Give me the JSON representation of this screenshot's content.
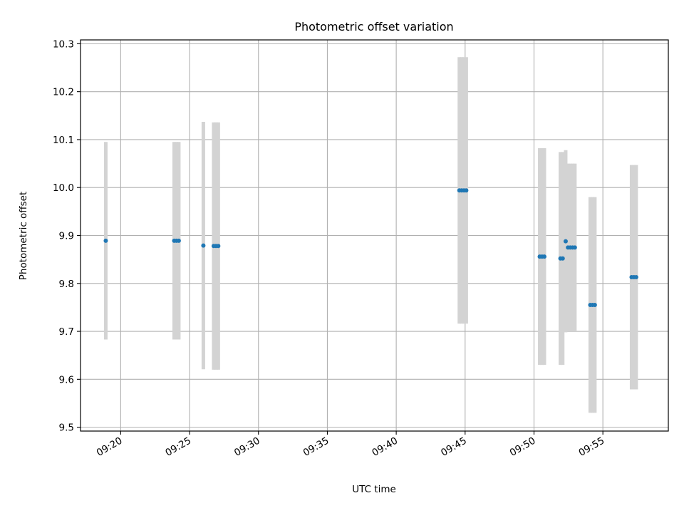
{
  "chart_data": {
    "type": "scatter",
    "title": "Photometric offset variation",
    "xlabel": "UTC time",
    "ylabel": "Photometric offset",
    "xlim": [
      "09:17:05",
      "09:59:45"
    ],
    "ylim": [
      9.492,
      10.308
    ],
    "xticks": [
      "09:20",
      "09:25",
      "09:30",
      "09:35",
      "09:40",
      "09:45",
      "09:50",
      "09:55"
    ],
    "yticks": [
      "9.5",
      "9.6",
      "9.7",
      "9.8",
      "9.9",
      "10.0",
      "10.1",
      "10.2",
      "10.3"
    ],
    "grid": true,
    "colors": {
      "point": "#1f77b4",
      "errorbar": "#d3d3d3",
      "grid": "#b0b0b0"
    },
    "points": [
      {
        "x": "09:18:55",
        "y": 9.889,
        "yerr": 0.206
      },
      {
        "x": "09:23:53",
        "y": 9.889,
        "yerr": 0.206
      },
      {
        "x": "09:24:03",
        "y": 9.889,
        "yerr": 0.206
      },
      {
        "x": "09:24:13",
        "y": 9.889,
        "yerr": 0.206
      },
      {
        "x": "09:26:00",
        "y": 9.879,
        "yerr": 0.258
      },
      {
        "x": "09:26:45",
        "y": 9.878,
        "yerr": 0.258
      },
      {
        "x": "09:26:55",
        "y": 9.878,
        "yerr": 0.258
      },
      {
        "x": "09:27:05",
        "y": 9.878,
        "yerr": 0.258
      },
      {
        "x": "09:44:35",
        "y": 9.994,
        "yerr": 0.278
      },
      {
        "x": "09:44:45",
        "y": 9.994,
        "yerr": 0.278
      },
      {
        "x": "09:44:55",
        "y": 9.994,
        "yerr": 0.278
      },
      {
        "x": "09:45:05",
        "y": 9.994,
        "yerr": 0.278
      },
      {
        "x": "09:50:25",
        "y": 9.856,
        "yerr": 0.226
      },
      {
        "x": "09:50:35",
        "y": 9.856,
        "yerr": 0.226
      },
      {
        "x": "09:50:45",
        "y": 9.856,
        "yerr": 0.226
      },
      {
        "x": "09:51:55",
        "y": 9.852,
        "yerr": 0.222
      },
      {
        "x": "09:52:05",
        "y": 9.852,
        "yerr": 0.222
      },
      {
        "x": "09:52:18",
        "y": 9.888,
        "yerr": 0.19
      },
      {
        "x": "09:52:28",
        "y": 9.875,
        "yerr": 0.175
      },
      {
        "x": "09:52:38",
        "y": 9.875,
        "yerr": 0.175
      },
      {
        "x": "09:52:48",
        "y": 9.875,
        "yerr": 0.175
      },
      {
        "x": "09:52:58",
        "y": 9.875,
        "yerr": 0.175
      },
      {
        "x": "09:54:05",
        "y": 9.755,
        "yerr": 0.225
      },
      {
        "x": "09:54:15",
        "y": 9.755,
        "yerr": 0.225
      },
      {
        "x": "09:54:25",
        "y": 9.755,
        "yerr": 0.225
      },
      {
        "x": "09:57:05",
        "y": 9.813,
        "yerr": 0.234
      },
      {
        "x": "09:57:15",
        "y": 9.813,
        "yerr": 0.234
      },
      {
        "x": "09:57:25",
        "y": 9.813,
        "yerr": 0.234
      }
    ]
  }
}
